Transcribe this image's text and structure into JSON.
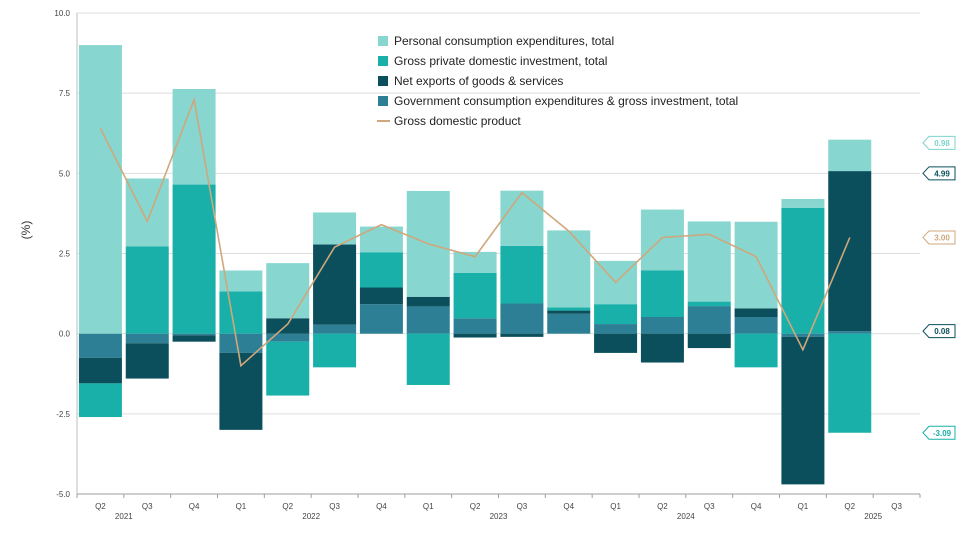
{
  "chart_data": {
    "type": "bar",
    "stacked": true,
    "title": "",
    "ylabel": "(%)",
    "ylim": [
      -5.0,
      10.0
    ],
    "yticks": [
      "10.0",
      "7.5",
      "5.0",
      "2.5",
      "0.0",
      "-2.5",
      "-5.0"
    ],
    "grid": true,
    "legend_position": "top-center",
    "categories": [
      "Q2",
      "Q3",
      "Q4",
      "Q1",
      "Q2",
      "Q3",
      "Q4",
      "Q1",
      "Q2",
      "Q3",
      "Q4",
      "Q1",
      "Q2",
      "Q3",
      "Q4",
      "Q1",
      "Q2",
      "Q3"
    ],
    "year_labels": [
      {
        "label": "2021",
        "index": 0
      },
      {
        "label": "2022",
        "index": 4
      },
      {
        "label": "2023",
        "index": 8
      },
      {
        "label": "2024",
        "index": 12
      },
      {
        "label": "2025",
        "index": 16
      }
    ],
    "series": [
      {
        "name": "Government consumption expenditures & gross investment, total",
        "color": "#2c7f94",
        "values": [
          -0.75,
          -0.3,
          -0.05,
          -0.6,
          -0.25,
          0.28,
          0.92,
          0.85,
          0.48,
          0.94,
          0.62,
          0.3,
          0.52,
          0.86,
          0.52,
          -0.1,
          0.08,
          null
        ]
      },
      {
        "name": "Net exports of goods & services",
        "color": "#0b4f5c",
        "values": [
          -0.8,
          -1.1,
          -0.2,
          -2.4,
          0.48,
          2.5,
          0.52,
          0.3,
          -0.12,
          -0.1,
          0.1,
          -0.6,
          -0.9,
          -0.45,
          0.27,
          -4.6,
          4.99,
          null
        ]
      },
      {
        "name": "Gross private domestic investment, total",
        "color": "#18b0a8",
        "values": [
          -1.05,
          2.72,
          4.65,
          1.32,
          -1.68,
          -1.05,
          1.1,
          -1.6,
          1.42,
          1.8,
          0.1,
          0.62,
          1.45,
          0.14,
          -1.05,
          3.92,
          -3.09,
          null
        ]
      },
      {
        "name": "Personal consumption expenditures, total",
        "color": "#88d6d0",
        "values": [
          9.0,
          2.12,
          2.98,
          0.65,
          1.72,
          1.0,
          0.8,
          3.3,
          0.65,
          1.72,
          2.4,
          1.35,
          1.9,
          2.5,
          2.7,
          0.28,
          0.98,
          null
        ]
      }
    ],
    "line_series": {
      "name": "Gross domestic product",
      "color": "#cfa77c",
      "values": [
        6.4,
        3.5,
        7.3,
        -1.0,
        0.3,
        2.7,
        3.4,
        2.8,
        2.4,
        4.4,
        3.2,
        1.6,
        3.0,
        3.1,
        2.4,
        -0.5,
        3.0,
        null
      ]
    },
    "callouts": [
      {
        "label": "0.98",
        "value": 5.95,
        "color": "#7dd3cc"
      },
      {
        "label": "4.99",
        "value": 5.0,
        "color": "#0b4f5c"
      },
      {
        "label": "3.00",
        "value": 3.0,
        "color": "#cfa77c"
      },
      {
        "label": "0.08",
        "value": 0.08,
        "color": "#0b4f5c"
      },
      {
        "label": "-3.09",
        "value": -3.09,
        "color": "#18b0a8"
      }
    ],
    "legend": [
      {
        "name": "Personal consumption expenditures, total",
        "color": "#88d6d0",
        "kind": "box"
      },
      {
        "name": "Gross private domestic investment, total",
        "color": "#18b0a8",
        "kind": "box"
      },
      {
        "name": "Net exports of goods & services",
        "color": "#0b4f5c",
        "kind": "box"
      },
      {
        "name": "Government consumption expenditures & gross investment, total",
        "color": "#2c7f94",
        "kind": "box"
      },
      {
        "name": "Gross domestic product",
        "color": "#cfa77c",
        "kind": "line"
      }
    ]
  }
}
